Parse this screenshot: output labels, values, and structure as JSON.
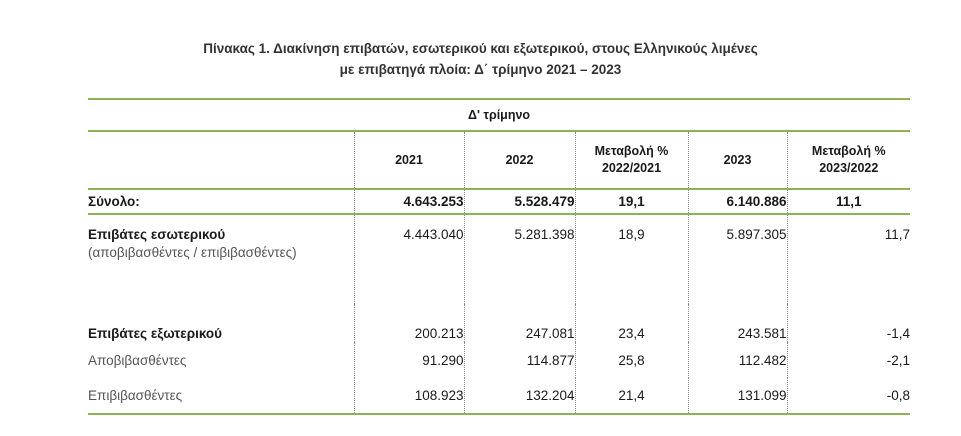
{
  "title": {
    "line1": "Πίνακας 1. Διακίνηση επιβατών, εσωτερικού και εξωτερικού, στους Ελληνικούς λιμένες",
    "line2": "με επιβατηγά πλοία: Δ΄ τρίμηνο 2021 – 2023"
  },
  "table": {
    "quarter_header": "Δ' τρίμηνο",
    "columns": {
      "y2021": "2021",
      "y2022": "2022",
      "change_2022_line1": "Μεταβολή %",
      "change_2022_line2": "2022/2021",
      "y2023": "2023",
      "change_2023_line1": "Μεταβολή %",
      "change_2023_line2": "2023/2022"
    },
    "rows": [
      {
        "label": "Σύνολο:",
        "y2021": "4.643.253",
        "y2022": "5.528.479",
        "change_2022": "19,1",
        "y2023": "6.140.886",
        "change_2023": "11,1"
      },
      {
        "label": "Επιβάτες εσωτερικού",
        "sublabel": "(αποβιβασθέντες / επιβιβασθέντες)",
        "y2021": "4.443.040",
        "y2022": "5.281.398",
        "change_2022": "18,9",
        "y2023": "5.897.305",
        "change_2023": "11,7"
      },
      {
        "label": "Επιβάτες εξωτερικού",
        "y2021": "200.213",
        "y2022": "247.081",
        "change_2022": "23,4",
        "y2023": "243.581",
        "change_2023": "-1,4"
      },
      {
        "label": "Αποβιβασθέντες",
        "y2021": "91.290",
        "y2022": "114.877",
        "change_2022": "25,8",
        "y2023": "112.482",
        "change_2023": "-2,1"
      },
      {
        "label": "Επιβιβασθέντες",
        "y2021": "108.923",
        "y2022": "132.204",
        "change_2022": "21,4",
        "y2023": "131.099",
        "change_2023": "-0,8"
      }
    ]
  },
  "colors": {
    "rule_green": "#8db356",
    "text": "#1a1a1a",
    "muted_text": "#555555"
  }
}
